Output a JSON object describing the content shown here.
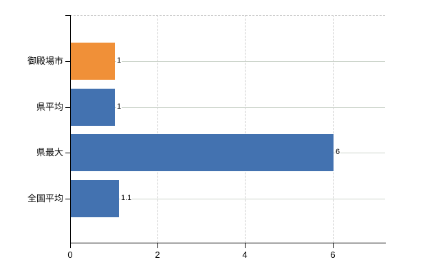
{
  "chart_data": {
    "type": "bar",
    "orientation": "horizontal",
    "title": "",
    "xlabel": "",
    "ylabel": "",
    "categories": [
      "御殿場市",
      "県平均",
      "県最大",
      "全国平均"
    ],
    "values": [
      1,
      1,
      6,
      1.1
    ],
    "value_labels": [
      "1",
      "1",
      "6",
      "1.1"
    ],
    "bar_colors": [
      "#f09038",
      "#4372b0",
      "#4372b0",
      "#4372b0"
    ],
    "x_ticks": [
      0,
      2,
      4,
      6
    ],
    "x_tick_labels": [
      "0",
      "2",
      "4",
      "6"
    ],
    "xlim": [
      0,
      7.2
    ],
    "grid": "on",
    "legend": "none",
    "colors": {
      "background": "#ffffff",
      "axis": "#000000",
      "gridline_horizontal": "#ccd4cb",
      "gridline_vertical": "#cccccc",
      "label_text": "#000000"
    }
  }
}
